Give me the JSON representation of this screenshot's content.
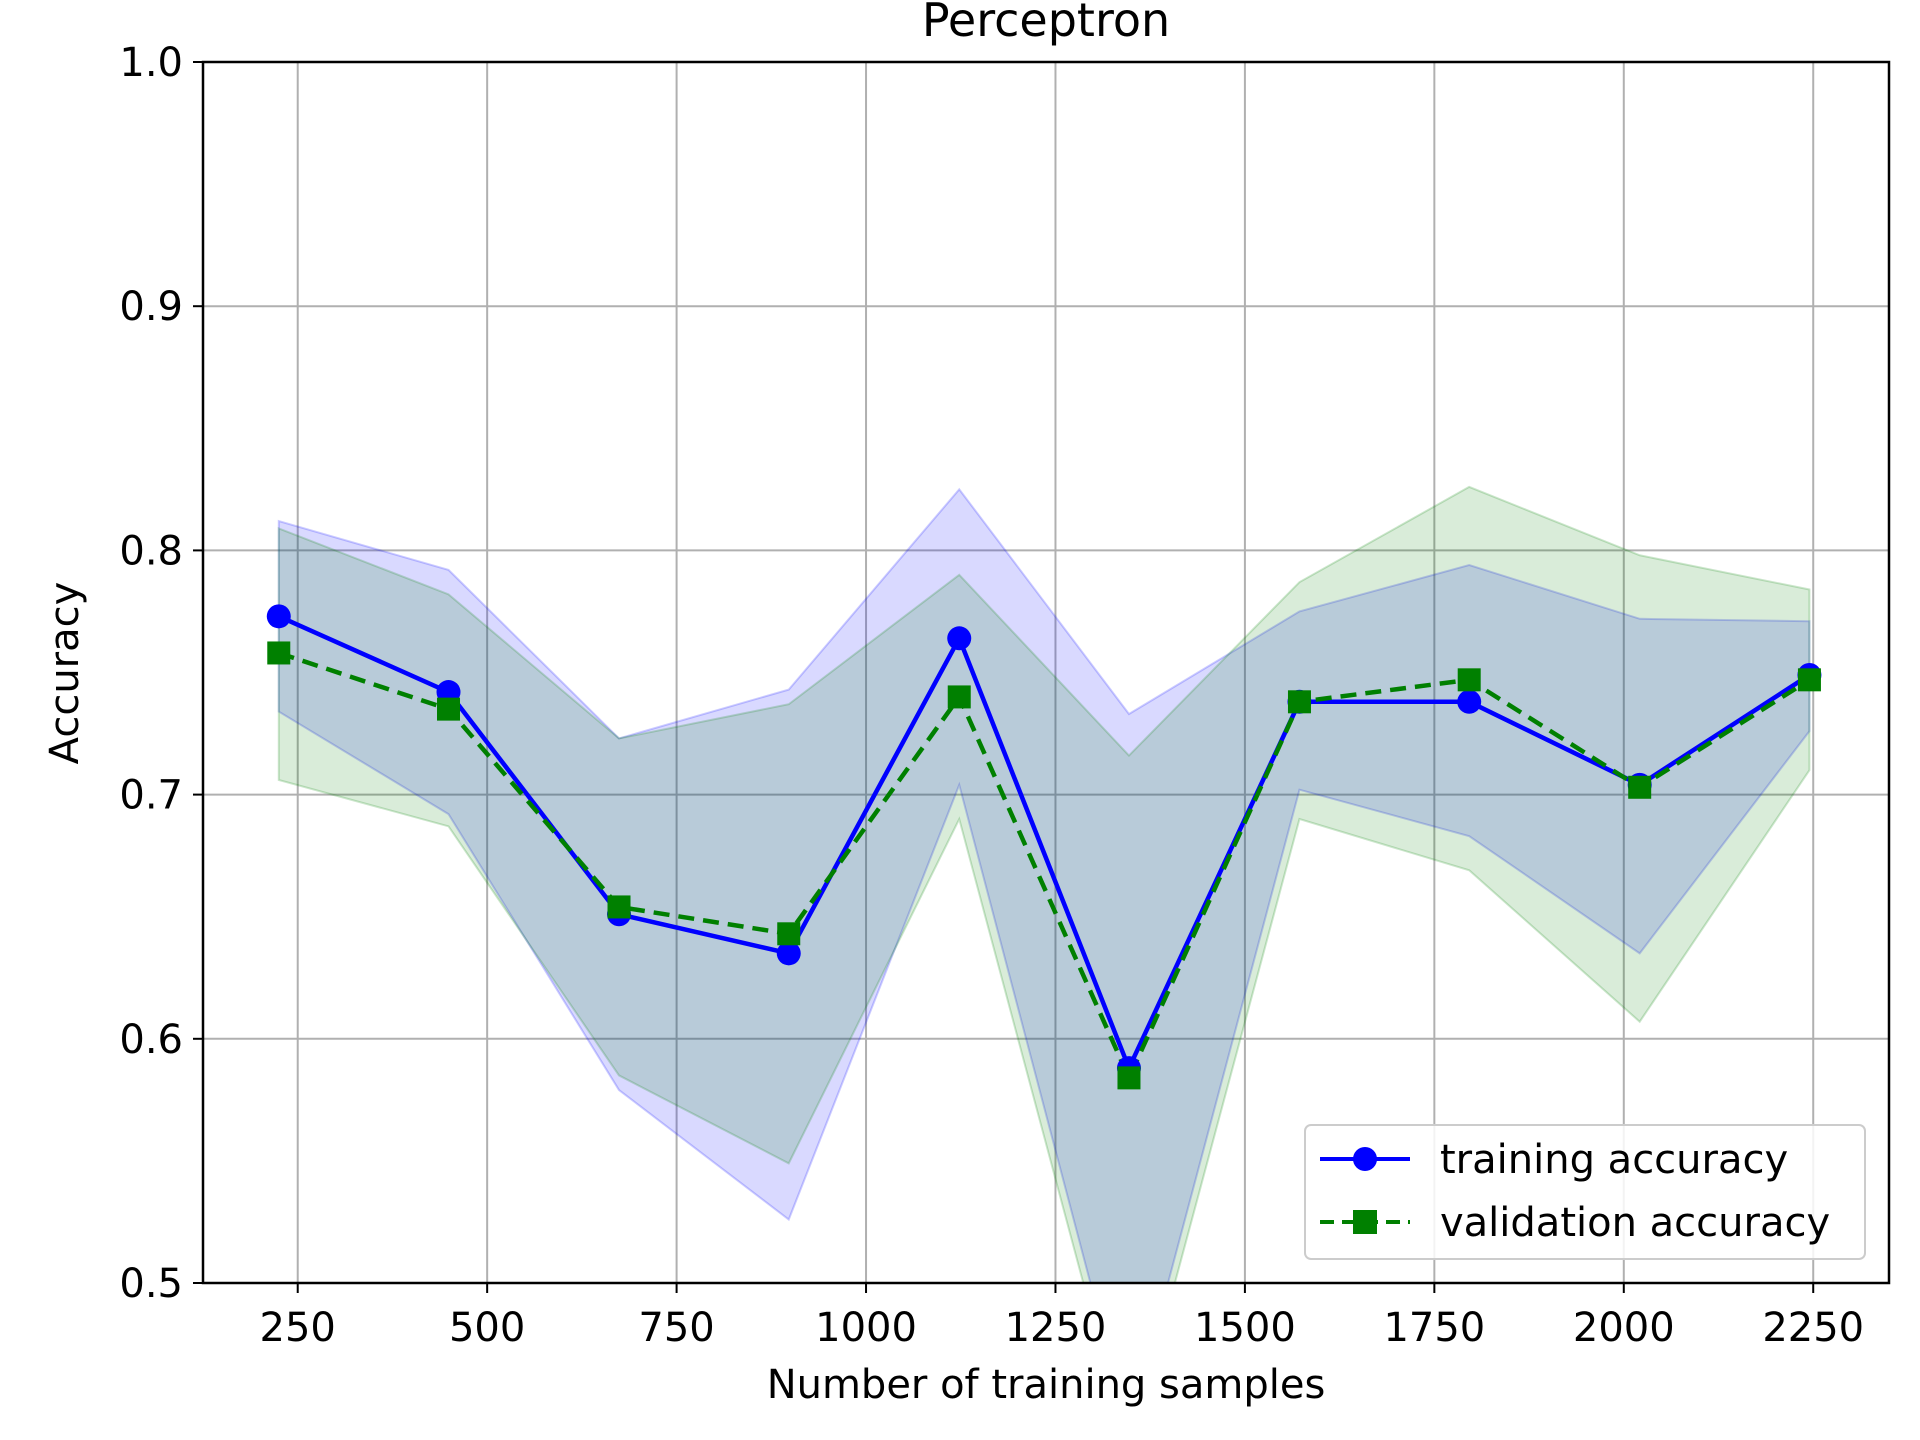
{
  "chart_data": {
    "type": "line",
    "title": "Perceptron",
    "xlabel": "Number of training samples",
    "ylabel": "Accuracy",
    "xlim": [
      125,
      2350
    ],
    "ylim": [
      0.5,
      1.0
    ],
    "xticks": [
      250,
      500,
      750,
      1000,
      1250,
      1500,
      1750,
      2000,
      2250
    ],
    "yticks": [
      0.5,
      0.6,
      0.7,
      0.8,
      0.9,
      1.0
    ],
    "ytick_labels": [
      "0.5",
      "0.6",
      "0.7",
      "0.8",
      "0.9",
      "1.0"
    ],
    "grid": true,
    "legend_position": "lower-right",
    "x": [
      225,
      449,
      674,
      898,
      1123,
      1347,
      1572,
      1796,
      2021,
      2245
    ],
    "series": [
      {
        "name": "training accuracy",
        "color": "#0000ff",
        "line_style": "solid",
        "marker": "circle",
        "values": [
          0.773,
          0.742,
          0.651,
          0.635,
          0.764,
          0.588,
          0.738,
          0.738,
          0.704,
          0.749
        ],
        "band_lower": [
          0.734,
          0.692,
          0.579,
          0.526,
          0.704,
          0.44,
          0.702,
          0.683,
          0.635,
          0.726
        ],
        "band_upper": [
          0.812,
          0.792,
          0.723,
          0.743,
          0.825,
          0.733,
          0.775,
          0.794,
          0.772,
          0.771
        ],
        "band_color": "#0000ff"
      },
      {
        "name": "validation accuracy",
        "color": "#008000",
        "line_style": "dashed",
        "marker": "square",
        "values": [
          0.758,
          0.735,
          0.654,
          0.643,
          0.74,
          0.584,
          0.738,
          0.747,
          0.703,
          0.747
        ],
        "band_lower": [
          0.706,
          0.687,
          0.585,
          0.549,
          0.69,
          0.43,
          0.69,
          0.669,
          0.607,
          0.71
        ],
        "band_upper": [
          0.809,
          0.782,
          0.723,
          0.737,
          0.79,
          0.716,
          0.787,
          0.826,
          0.798,
          0.784
        ],
        "band_color": "#008000"
      }
    ]
  }
}
